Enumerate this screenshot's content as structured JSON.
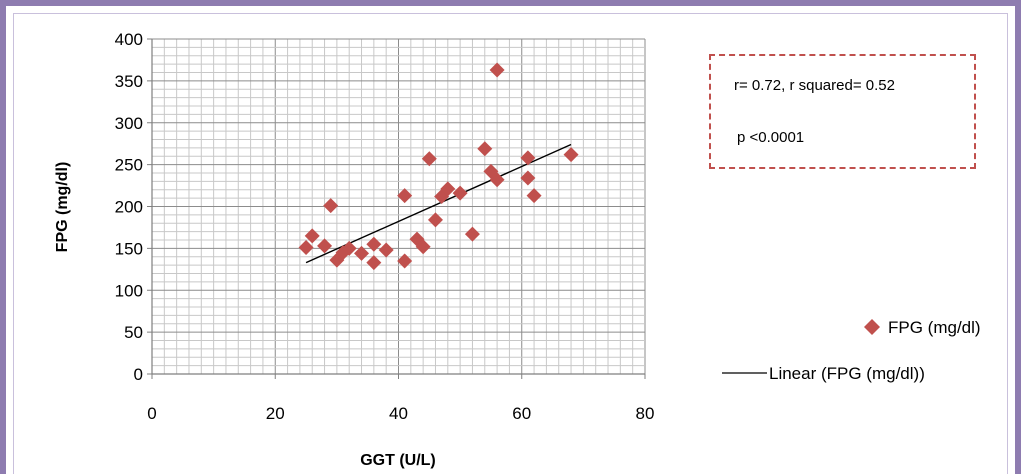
{
  "chart_data": {
    "type": "scatter",
    "xlabel": "GGT (U/L)",
    "ylabel": "FPG (mg/dl)",
    "xlim": [
      0,
      80
    ],
    "ylim": [
      0,
      400
    ],
    "x_ticks": [
      "0",
      "20",
      "40",
      "60",
      "80"
    ],
    "y_ticks": [
      "0",
      "50",
      "100",
      "150",
      "200",
      "250",
      "300",
      "350",
      "400"
    ],
    "grid": true,
    "legend_position": "right",
    "series": [
      {
        "name": "FPG (mg/dl)",
        "marker": "diamond",
        "color": "#c0504d",
        "points": [
          {
            "x": 25,
            "y": 151
          },
          {
            "x": 26,
            "y": 165
          },
          {
            "x": 28,
            "y": 153
          },
          {
            "x": 29,
            "y": 201
          },
          {
            "x": 30,
            "y": 136
          },
          {
            "x": 31,
            "y": 145
          },
          {
            "x": 32,
            "y": 150
          },
          {
            "x": 34,
            "y": 144
          },
          {
            "x": 36,
            "y": 155
          },
          {
            "x": 36,
            "y": 133
          },
          {
            "x": 38,
            "y": 148
          },
          {
            "x": 41,
            "y": 135
          },
          {
            "x": 41,
            "y": 213
          },
          {
            "x": 43,
            "y": 161
          },
          {
            "x": 44,
            "y": 152
          },
          {
            "x": 45,
            "y": 257
          },
          {
            "x": 46,
            "y": 184
          },
          {
            "x": 47,
            "y": 212
          },
          {
            "x": 48,
            "y": 221
          },
          {
            "x": 50,
            "y": 216
          },
          {
            "x": 52,
            "y": 167
          },
          {
            "x": 54,
            "y": 269
          },
          {
            "x": 55,
            "y": 242
          },
          {
            "x": 56,
            "y": 363
          },
          {
            "x": 56,
            "y": 232
          },
          {
            "x": 61,
            "y": 258
          },
          {
            "x": 61,
            "y": 234
          },
          {
            "x": 62,
            "y": 213
          },
          {
            "x": 68,
            "y": 262
          }
        ]
      },
      {
        "name": "Linear (FPG (mg/dl))",
        "type": "trendline",
        "color": "#000000",
        "points": [
          {
            "x": 25,
            "y": 133
          },
          {
            "x": 68,
            "y": 274
          }
        ]
      }
    ],
    "annotations": [
      "r= 0.72, r squared= 0.52",
      "p <0.0001"
    ]
  }
}
